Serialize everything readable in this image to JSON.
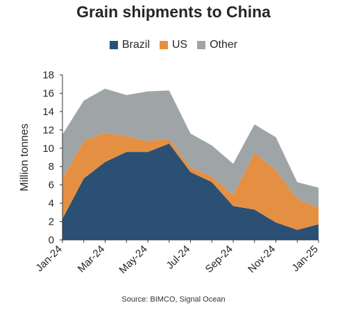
{
  "chart_data": {
    "type": "area",
    "title": "Grain shipments to China",
    "ylabel": "Million tonnes",
    "xlabel": "",
    "source": "Source: BIMCO, Signal Ocean",
    "stacked": true,
    "legend_position": "top-center",
    "grid": false,
    "ylim": [
      0,
      18
    ],
    "yticks": [
      "0",
      "2",
      "4",
      "6",
      "8",
      "10",
      "12",
      "14",
      "16",
      "18"
    ],
    "x": [
      "Jan-24",
      "Feb-24",
      "Mar-24",
      "Apr-24",
      "May-24",
      "Jun-24",
      "Jul-24",
      "Aug-24",
      "Sep-24",
      "Oct-24",
      "Nov-24",
      "Dec-24",
      "Jan-25"
    ],
    "xtick_labels": [
      "Jan-24",
      "Mar-24",
      "May-24",
      "Jul-24",
      "Sep-24",
      "Nov-24",
      "Jan-25"
    ],
    "series": [
      {
        "name": "Brazil",
        "color": "#2b5073",
        "values": [
          2.3,
          6.7,
          8.5,
          9.6,
          9.6,
          10.5,
          7.4,
          6.3,
          3.7,
          3.3,
          1.9,
          1.1,
          1.7
        ]
      },
      {
        "name": "US",
        "color": "#e58f43",
        "values": [
          4.4,
          4.1,
          3.2,
          1.7,
          1.2,
          0.5,
          0.5,
          0.6,
          1.2,
          6.2,
          5.7,
          3.4,
          1.8
        ]
      },
      {
        "name": "Other",
        "color": "#9fa5a7",
        "values": [
          4.8,
          4.4,
          4.8,
          4.5,
          5.4,
          5.3,
          3.7,
          3.4,
          3.4,
          3.1,
          3.6,
          1.8,
          2.2
        ]
      }
    ]
  }
}
